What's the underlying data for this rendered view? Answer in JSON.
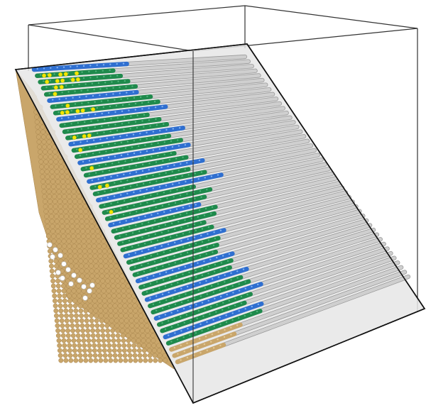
{
  "scene": {
    "colors": {
      "background": "#ffffff",
      "outline": "#222222",
      "plane_fill": "#e6e6e6",
      "plane_edge": "#111111",
      "tan": "#c9a66b",
      "tan_dark": "#a9864e",
      "grey_sphere": "#cfcfcf",
      "grey_edge": "#9a9a9a",
      "blue": "#2f6fd0",
      "green": "#1f8a4c",
      "green_dark": "#126b38",
      "yellow": "#f2e600"
    },
    "row_count": 48,
    "rows": [
      {
        "fill": 0.44,
        "kind": "blue",
        "yellow": 0.0
      },
      {
        "fill": 0.36,
        "kind": "green",
        "yellow": 0.5
      },
      {
        "fill": 0.38,
        "kind": "green",
        "yellow": 0.45
      },
      {
        "fill": 0.4,
        "kind": "green",
        "yellow": 0.2
      },
      {
        "fill": 0.42,
        "kind": "green",
        "yellow": 0.1
      },
      {
        "fill": 0.41,
        "kind": "blue",
        "yellow": 0.0
      },
      {
        "fill": 0.46,
        "kind": "green",
        "yellow": 0.15
      },
      {
        "fill": 0.48,
        "kind": "green",
        "yellow": 0.35
      },
      {
        "fill": 0.5,
        "kind": "blue",
        "yellow": 0.0
      },
      {
        "fill": 0.4,
        "kind": "green",
        "yellow": 0.1
      },
      {
        "fill": 0.44,
        "kind": "green",
        "yellow": 0.0
      },
      {
        "fill": 0.46,
        "kind": "green",
        "yellow": 0.25
      },
      {
        "fill": 0.52,
        "kind": "blue",
        "yellow": 0.0
      },
      {
        "fill": 0.44,
        "kind": "green",
        "yellow": 0.05
      },
      {
        "fill": 0.48,
        "kind": "green",
        "yellow": 0.0
      },
      {
        "fill": 0.5,
        "kind": "blue",
        "yellow": 0.0
      },
      {
        "fill": 0.42,
        "kind": "green",
        "yellow": 0.1
      },
      {
        "fill": 0.46,
        "kind": "green",
        "yellow": 0.0
      },
      {
        "fill": 0.52,
        "kind": "blue",
        "yellow": 0.0
      },
      {
        "fill": 0.44,
        "kind": "green",
        "yellow": 0.15
      },
      {
        "fill": 0.5,
        "kind": "green",
        "yellow": 0.0
      },
      {
        "fill": 0.56,
        "kind": "blue",
        "yellow": 0.0
      },
      {
        "fill": 0.42,
        "kind": "green",
        "yellow": 0.0
      },
      {
        "fill": 0.48,
        "kind": "green",
        "yellow": 0.1
      },
      {
        "fill": 0.44,
        "kind": "green",
        "yellow": 0.0
      },
      {
        "fill": 0.4,
        "kind": "blue",
        "yellow": 0.0
      },
      {
        "fill": 0.46,
        "kind": "green",
        "yellow": 0.0
      },
      {
        "fill": 0.44,
        "kind": "green",
        "yellow": 0.0
      },
      {
        "fill": 0.38,
        "kind": "green",
        "yellow": 0.0
      },
      {
        "fill": 0.4,
        "kind": "green",
        "yellow": 0.0
      },
      {
        "fill": 0.44,
        "kind": "blue",
        "yellow": 0.0
      },
      {
        "fill": 0.4,
        "kind": "green",
        "yellow": 0.0
      },
      {
        "fill": 0.38,
        "kind": "green",
        "yellow": 0.0
      },
      {
        "fill": 0.36,
        "kind": "green",
        "yellow": 0.0
      },
      {
        "fill": 0.42,
        "kind": "blue",
        "yellow": 0.0
      },
      {
        "fill": 0.4,
        "kind": "green",
        "yellow": 0.0
      },
      {
        "fill": 0.38,
        "kind": "green",
        "yellow": 0.0
      },
      {
        "fill": 0.44,
        "kind": "blue",
        "yellow": 0.0
      },
      {
        "fill": 0.4,
        "kind": "green",
        "yellow": 0.0
      },
      {
        "fill": 0.42,
        "kind": "green",
        "yellow": 0.0
      },
      {
        "fill": 0.46,
        "kind": "blue",
        "yellow": 0.0
      },
      {
        "fill": 0.4,
        "kind": "green",
        "yellow": 0.0
      },
      {
        "fill": 0.36,
        "kind": "green",
        "yellow": 0.0
      },
      {
        "fill": 0.42,
        "kind": "blue",
        "yellow": 0.0
      },
      {
        "fill": 0.4,
        "kind": "green",
        "yellow": 0.0
      },
      {
        "fill": 0.3,
        "kind": "tan",
        "yellow": 0.0
      },
      {
        "fill": 0.26,
        "kind": "tan",
        "yellow": 0.0
      },
      {
        "fill": 0.2,
        "kind": "tan",
        "yellow": 0.0
      }
    ]
  }
}
